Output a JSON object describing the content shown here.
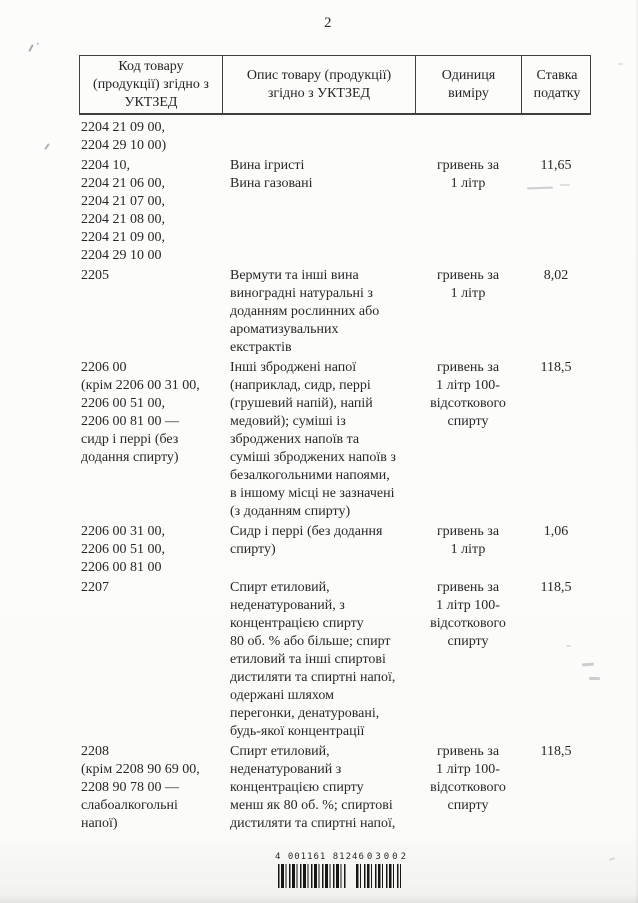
{
  "page": {
    "number": "2"
  },
  "table": {
    "headers": {
      "code": "Код товару\n(продукції) згідно з\nУКТЗЕД",
      "description": "Опис товару (продукції)\nзгідно з УКТЗЕД",
      "unit": "Одиниця\nвиміру",
      "rate": "Ставка\nподатку"
    },
    "rows": [
      {
        "code": "2204 21 09 00,\n2204 29 10 00)",
        "description": "",
        "unit": "",
        "rate": ""
      },
      {
        "code": "2204 10,\n2204 21 06 00,\n2204 21 07 00,\n2204 21 08 00,\n2204 21 09 00,\n2204 29 10 00",
        "description": "Вина ігристі\nВина газовані",
        "unit": "гривень за\n1 літр",
        "rate": "11,65"
      },
      {
        "code": "2205",
        "description": "Вермути та інші вина\nвиноградні натуральні з\nдоданням рослинних або\nароматизувальних\nекстрактів",
        "unit": "гривень за\n1 літр",
        "rate": "8,02"
      },
      {
        "code": "2206 00\n(крім 2206 00 31 00,\n2206 00 51 00,\n2206 00 81 00 —\nсидр і перрі (без\nдодання спирту)",
        "description": "Інші зброджені напої\n(наприклад, сидр, перрі\n(грушевий напій), напій\nмедовий); суміші із\nзброджених напоїв та\nсуміші зброджених напоїв з\nбезалкогольними напоями,\nв іншому місці не зазначені\n(з доданням спирту)",
        "unit": "гривень за\n1 літр 100-\nвідсоткового\nспирту",
        "rate": "118,5"
      },
      {
        "code": "2206 00 31 00,\n2206 00 51 00,\n2206 00 81 00",
        "description": "Сидр і перрі (без додання\nспирту)",
        "unit": "гривень за\n1 літр",
        "rate": "1,06"
      },
      {
        "code": "2207",
        "description": "Спирт етиловий,\nнеденатурований, з\nконцентрацією спирту\n80 об. % або більше; спирт\nетиловий та інші спиртові\nдистиляти та спиртні напої,\nодержані шляхом\nперегонки, денатуровані,\nбудь-якої концентрації",
        "unit": "гривень за\n1 літр 100-\nвідсоткового\nспирту",
        "rate": "118,5"
      },
      {
        "code": "2208\n(крім 2208 90 69 00,\n2208 90 78 00 —\nслабоалкогольні\nнапої)",
        "description": "Спирт етиловий,\nнеденатурований з\nконцентрацією спирту\nменш як 80 об. %; спиртові\nдистиляти та спиртні напої,",
        "unit": "гривень за\n1 літр 100-\nвідсоткового\nспирту",
        "rate": "118,5"
      }
    ]
  },
  "barcode": {
    "digits_left": "4 001161 81246",
    "digits_right": "03002"
  }
}
